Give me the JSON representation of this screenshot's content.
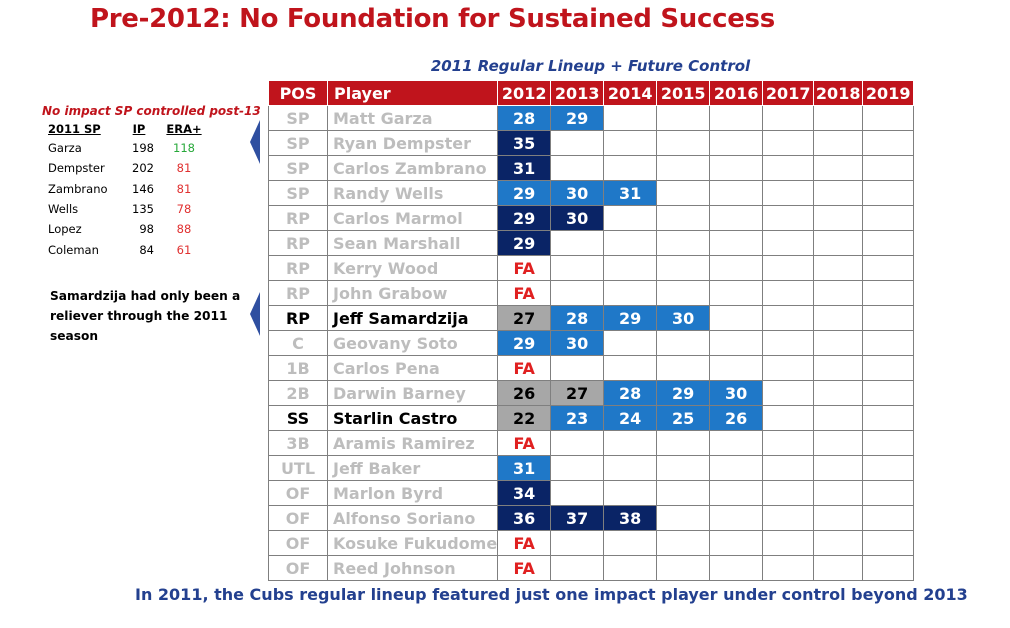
{
  "title": "Pre-2012: No Foundation for Sustained Success",
  "subtitle": "2011 Regular Lineup + Future Control",
  "sp_note": {
    "title": "No impact SP controlled post-13",
    "headers": [
      "2011 SP",
      "IP",
      "ERA+"
    ],
    "rows": [
      {
        "name": "Garza",
        "ip": "198",
        "era": "118"
      },
      {
        "name": "Dempster",
        "ip": "202",
        "era": "81"
      },
      {
        "name": "Zambrano",
        "ip": "146",
        "era": "81"
      },
      {
        "name": "Wells",
        "ip": "135",
        "era": "78"
      },
      {
        "name": "Lopez",
        "ip": "98",
        "era": "88"
      },
      {
        "name": "Coleman",
        "ip": "84",
        "era": "61"
      }
    ]
  },
  "samardzija_note": "Samardzija had only been a reliever through the 2011 season",
  "table": {
    "headers": [
      "POS",
      "Player",
      "2012",
      "2013",
      "2014",
      "2015",
      "2016",
      "2017",
      "2018",
      "2019"
    ],
    "rows": [
      {
        "pos": "SP",
        "player": "Matt Garza",
        "cells": [
          "28",
          "29",
          "",
          "",
          "",
          "",
          "",
          ""
        ]
      },
      {
        "pos": "SP",
        "player": "Ryan Dempster",
        "cells": [
          "35",
          "",
          "",
          "",
          "",
          "",
          "",
          ""
        ]
      },
      {
        "pos": "SP",
        "player": "Carlos Zambrano",
        "cells": [
          "31",
          "",
          "",
          "",
          "",
          "",
          "",
          ""
        ]
      },
      {
        "pos": "SP",
        "player": "Randy Wells",
        "cells": [
          "29",
          "30",
          "31",
          "",
          "",
          "",
          "",
          ""
        ]
      },
      {
        "pos": "RP",
        "player": "Carlos Marmol",
        "cells": [
          "29",
          "30",
          "",
          "",
          "",
          "",
          "",
          ""
        ]
      },
      {
        "pos": "RP",
        "player": "Sean Marshall",
        "cells": [
          "29",
          "",
          "",
          "",
          "",
          "",
          "",
          ""
        ]
      },
      {
        "pos": "RP",
        "player": "Kerry Wood",
        "cells": [
          "FA",
          "",
          "",
          "",
          "",
          "",
          "",
          ""
        ]
      },
      {
        "pos": "RP",
        "player": "John Grabow",
        "cells": [
          "FA",
          "",
          "",
          "",
          "",
          "",
          "",
          ""
        ]
      },
      {
        "pos": "RP",
        "player": "Jeff Samardzija",
        "cells": [
          "27",
          "28",
          "29",
          "30",
          "",
          "",
          "",
          ""
        ]
      },
      {
        "pos": "C",
        "player": "Geovany Soto",
        "cells": [
          "29",
          "30",
          "",
          "",
          "",
          "",
          "",
          ""
        ]
      },
      {
        "pos": "1B",
        "player": "Carlos Pena",
        "cells": [
          "FA",
          "",
          "",
          "",
          "",
          "",
          "",
          ""
        ]
      },
      {
        "pos": "2B",
        "player": "Darwin Barney",
        "cells": [
          "26",
          "27",
          "28",
          "29",
          "30",
          "",
          "",
          ""
        ]
      },
      {
        "pos": "SS",
        "player": "Starlin Castro",
        "cells": [
          "22",
          "23",
          "24",
          "25",
          "26",
          "",
          "",
          ""
        ]
      },
      {
        "pos": "3B",
        "player": "Aramis Ramirez",
        "cells": [
          "FA",
          "",
          "",
          "",
          "",
          "",
          "",
          ""
        ]
      },
      {
        "pos": "UTL",
        "player": "Jeff Baker",
        "cells": [
          "31",
          "",
          "",
          "",
          "",
          "",
          "",
          ""
        ]
      },
      {
        "pos": "OF",
        "player": "Marlon Byrd",
        "cells": [
          "34",
          "",
          "",
          "",
          "",
          "",
          "",
          ""
        ]
      },
      {
        "pos": "OF",
        "player": "Alfonso Soriano",
        "cells": [
          "36",
          "37",
          "38",
          "",
          "",
          "",
          "",
          ""
        ]
      },
      {
        "pos": "OF",
        "player": "Kosuke Fukudome",
        "cells": [
          "FA",
          "",
          "",
          "",
          "",
          "",
          "",
          ""
        ]
      },
      {
        "pos": "OF",
        "player": "Reed Johnson",
        "cells": [
          "FA",
          "",
          "",
          "",
          "",
          "",
          "",
          ""
        ]
      }
    ]
  },
  "footer": "In 2011, the Cubs regular lineup featured just one impact player under control beyond 2013",
  "colors": {
    "title_red": "#c0141c",
    "subtitle_blue": "#23408f",
    "navy": "#0a2466",
    "blue": "#1f78c8",
    "gray": "#a7a7a7",
    "fa_red": "#e02020",
    "era_good": "#27a83a",
    "era_bad": "#e03030"
  }
}
